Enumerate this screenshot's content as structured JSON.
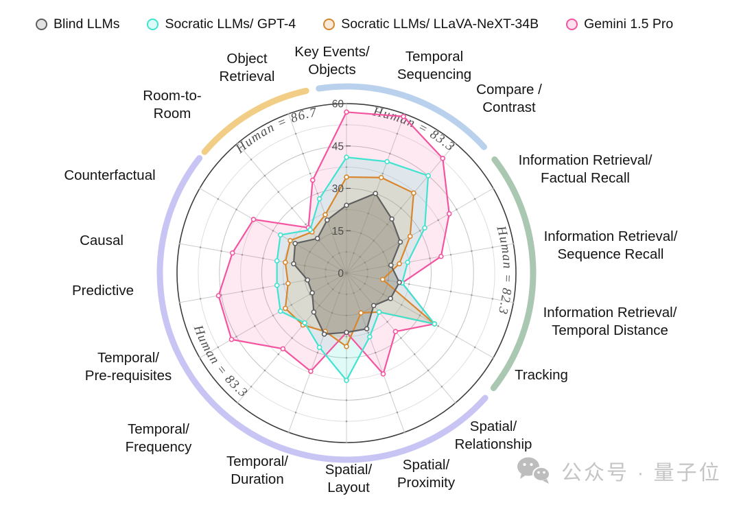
{
  "legend": {
    "items": [
      {
        "label": "Blind LLMs",
        "color": "#5f5f5f"
      },
      {
        "label": "Socratic LLMs/ GPT-4",
        "color": "#3fe3cf"
      },
      {
        "label": "Socratic LLMs/ LLaVA-NeXT-34B",
        "color": "#d8862b"
      },
      {
        "label": "Gemini 1.5 Pro",
        "color": "#f4549f"
      }
    ]
  },
  "chart_data": {
    "type": "radar",
    "r_max": 60,
    "r_ticks": [
      0,
      15,
      30,
      45,
      60
    ],
    "minor_ring_step": 7.5,
    "angle_step_deg": 20,
    "start": "top",
    "direction": "clockwise",
    "grid": "on",
    "categories": [
      "Key Events/\nObjects",
      "Temporal\nSequencing",
      "Compare /\nContrast",
      "Information Retrieval/\nFactual Recall",
      "Information Retrieval/\nSequence Recall",
      "Information Retrieval/\nTemporal Distance",
      "Tracking",
      "Spatial/\nRelationship",
      "Spatial/\nProximity",
      "Spatial/\nLayout",
      "Temporal/\nDuration",
      "Temporal/\nFrequency",
      "Temporal/\nPre-requisites",
      "Predictive",
      "Causal",
      "Counterfactual",
      "Room-to-\nRoom",
      "Object\nRetrieval"
    ],
    "series": [
      {
        "name": "Blind LLMs",
        "color": "#5f5f5f",
        "fill": "rgba(130,124,105,0.42)",
        "values": [
          24,
          30,
          25,
          22,
          16,
          19,
          18,
          15,
          21,
          21,
          23,
          18,
          14,
          14,
          19,
          21,
          16,
          20
        ]
      },
      {
        "name": "Socratic LLMs/ GPT-4",
        "color": "#3fe3cf",
        "fill": "rgba(63,227,207,0.16)",
        "values": [
          41,
          42,
          45,
          32,
          22,
          20,
          36,
          18,
          24,
          38,
          28,
          23,
          27,
          25,
          25,
          27,
          20,
          28
        ]
      },
      {
        "name": "Socratic LLMs/ LLaVA-NeXT-34B",
        "color": "#d8862b",
        "fill": "rgba(216,134,43,0.16)",
        "values": [
          34,
          36,
          37,
          26,
          19,
          13,
          36,
          18,
          15,
          26,
          22,
          24,
          25,
          21,
          22,
          23,
          19,
          22
        ]
      },
      {
        "name": "Gemini 1.5 Pro",
        "color": "#f4549f",
        "fill": "rgba(244,84,158,0.13)",
        "values": [
          57,
          59,
          53,
          42,
          34,
          20,
          36,
          27,
          38,
          21,
          37,
          35,
          47,
          46,
          41,
          38,
          21,
          35
        ]
      }
    ],
    "group_arcs": [
      {
        "label": "Human = 86.7",
        "color": "#f1cd85",
        "start_deg": -49.5,
        "end_deg": -12.5
      },
      {
        "label": "Human = 83.3",
        "color": "#b9d1ec",
        "start_deg": -8.5,
        "end_deg": 47.5
      },
      {
        "label": "Human = 82.3",
        "color": "#a9c7b1",
        "start_deg": 52.5,
        "end_deg": 128
      },
      {
        "label": "Human = 83.3",
        "color": "#c8c5f4",
        "start_deg": 132,
        "end_deg": 308
      }
    ]
  },
  "watermark": {
    "text": "公众号 · 量子位"
  }
}
